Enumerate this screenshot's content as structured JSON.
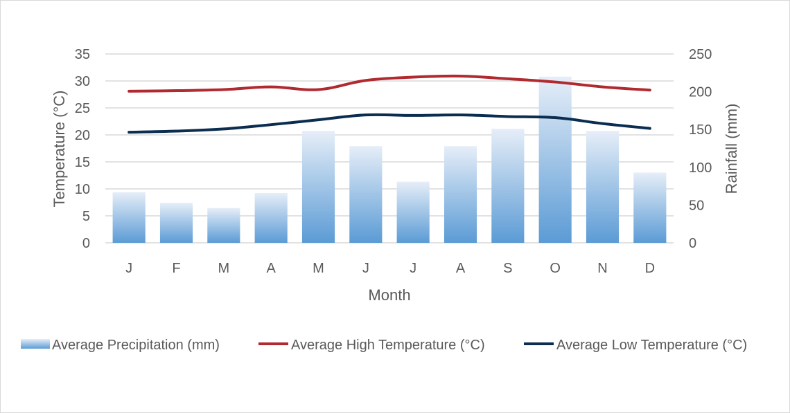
{
  "chart_data": {
    "type": "bar+line",
    "categories": [
      "J",
      "F",
      "M",
      "A",
      "M",
      "J",
      "J",
      "A",
      "S",
      "O",
      "N",
      "D"
    ],
    "xlabel": "Month",
    "ylabel_left": "Temperature (°C)",
    "ylabel_right": "Rainfall (mm)",
    "ylim_left": [
      0,
      35
    ],
    "ylim_right": [
      0,
      250
    ],
    "yticks_left": [
      "0",
      "5",
      "10",
      "15",
      "20",
      "25",
      "30",
      "35"
    ],
    "yticks_right": [
      "0",
      "50",
      "100",
      "150",
      "200",
      "250"
    ],
    "grid": true,
    "legend_position": "bottom",
    "series": [
      {
        "name": "Average Precipitation (mm)",
        "type": "bar",
        "axis": "right",
        "color": "#5b9bd5",
        "values": [
          67,
          53,
          46,
          66,
          148,
          128,
          81,
          128,
          151,
          220,
          148,
          93
        ]
      },
      {
        "name": "Average High Temperature (°C)",
        "type": "line",
        "axis": "left",
        "color": "#b02a30",
        "values": [
          28.1,
          28.2,
          28.4,
          28.9,
          28.4,
          30.1,
          30.7,
          30.9,
          30.4,
          29.8,
          28.9,
          28.3
        ]
      },
      {
        "name": "Average Low Temperature (°C)",
        "type": "line",
        "axis": "left",
        "color": "#0b2d4f",
        "values": [
          20.5,
          20.7,
          21.1,
          21.9,
          22.8,
          23.7,
          23.6,
          23.7,
          23.4,
          23.2,
          22.1,
          21.2
        ]
      }
    ]
  }
}
